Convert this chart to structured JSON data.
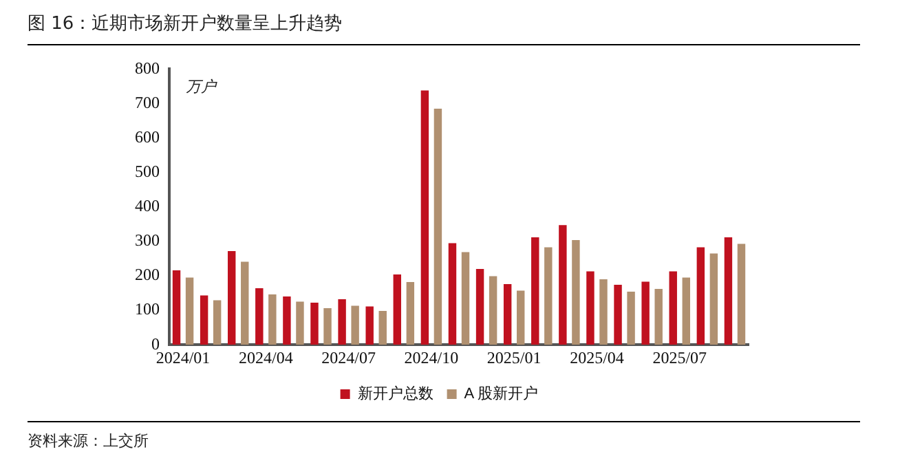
{
  "chart_data": {
    "type": "bar",
    "title": "图 16：近期市场新开户数量呈上升趋势",
    "ylabel": "万户",
    "categories": [
      "2024/01",
      null,
      null,
      "2024/04",
      null,
      null,
      "2024/07",
      null,
      null,
      "2024/10",
      null,
      null,
      "2025/01",
      null,
      null,
      "2025/04",
      null,
      null,
      "2025/07",
      null,
      null
    ],
    "series": [
      {
        "name": "新开户总数",
        "color": "#c0111f",
        "values": [
          216,
          143,
          272,
          164,
          140,
          122,
          132,
          111,
          204,
          738,
          295,
          220,
          176,
          312,
          347,
          213,
          174,
          183,
          213,
          283,
          312
        ]
      },
      {
        "name": "A 股新开户",
        "color": "#b09070",
        "values": [
          195,
          129,
          241,
          146,
          125,
          106,
          113,
          98,
          182,
          685,
          269,
          199,
          157,
          283,
          304,
          190,
          154,
          162,
          195,
          265,
          293
        ]
      }
    ],
    "ylim": [
      0,
      800
    ],
    "yticks": [
      0,
      100,
      200,
      300,
      400,
      500,
      600,
      700,
      800
    ],
    "grid": false,
    "legend": "bottom",
    "annotations": [
      "资料来源：上交所"
    ]
  }
}
